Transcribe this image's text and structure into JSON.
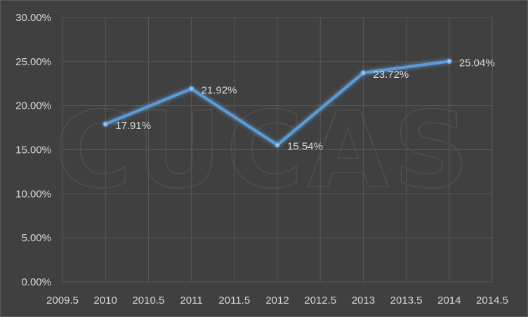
{
  "watermark": "CUCAS",
  "chart_data": {
    "type": "line",
    "x": [
      2010,
      2011,
      2012,
      2013,
      2014
    ],
    "series": [
      {
        "values": [
          17.91,
          21.92,
          15.54,
          23.72,
          25.04
        ],
        "labels": [
          "17.91%",
          "21.92%",
          "15.54%",
          "23.72%",
          "25.04%"
        ]
      }
    ],
    "xlim": [
      2009.5,
      2014.5
    ],
    "ylim": [
      0,
      30
    ],
    "x_ticks": [
      "2009.5",
      "2010",
      "2010.5",
      "2011",
      "2011.5",
      "2012",
      "2012.5",
      "2013",
      "2013.5",
      "2014",
      "2014.5"
    ],
    "x_tick_values": [
      2009.5,
      2010,
      2010.5,
      2011,
      2011.5,
      2012,
      2012.5,
      2013,
      2013.5,
      2014,
      2014.5
    ],
    "y_ticks": [
      "0.00%",
      "5.00%",
      "10.00%",
      "15.00%",
      "20.00%",
      "25.00%",
      "30.00%"
    ],
    "y_tick_values": [
      0,
      5,
      10,
      15,
      20,
      25,
      30
    ],
    "grid": true,
    "title": "",
    "xlabel": "",
    "ylabel": "",
    "colors": {
      "line": "#5b9bd5",
      "glow": "#5b9bd5",
      "grid": "#595959",
      "text": "#d9d9d9",
      "background": "#404040"
    }
  }
}
